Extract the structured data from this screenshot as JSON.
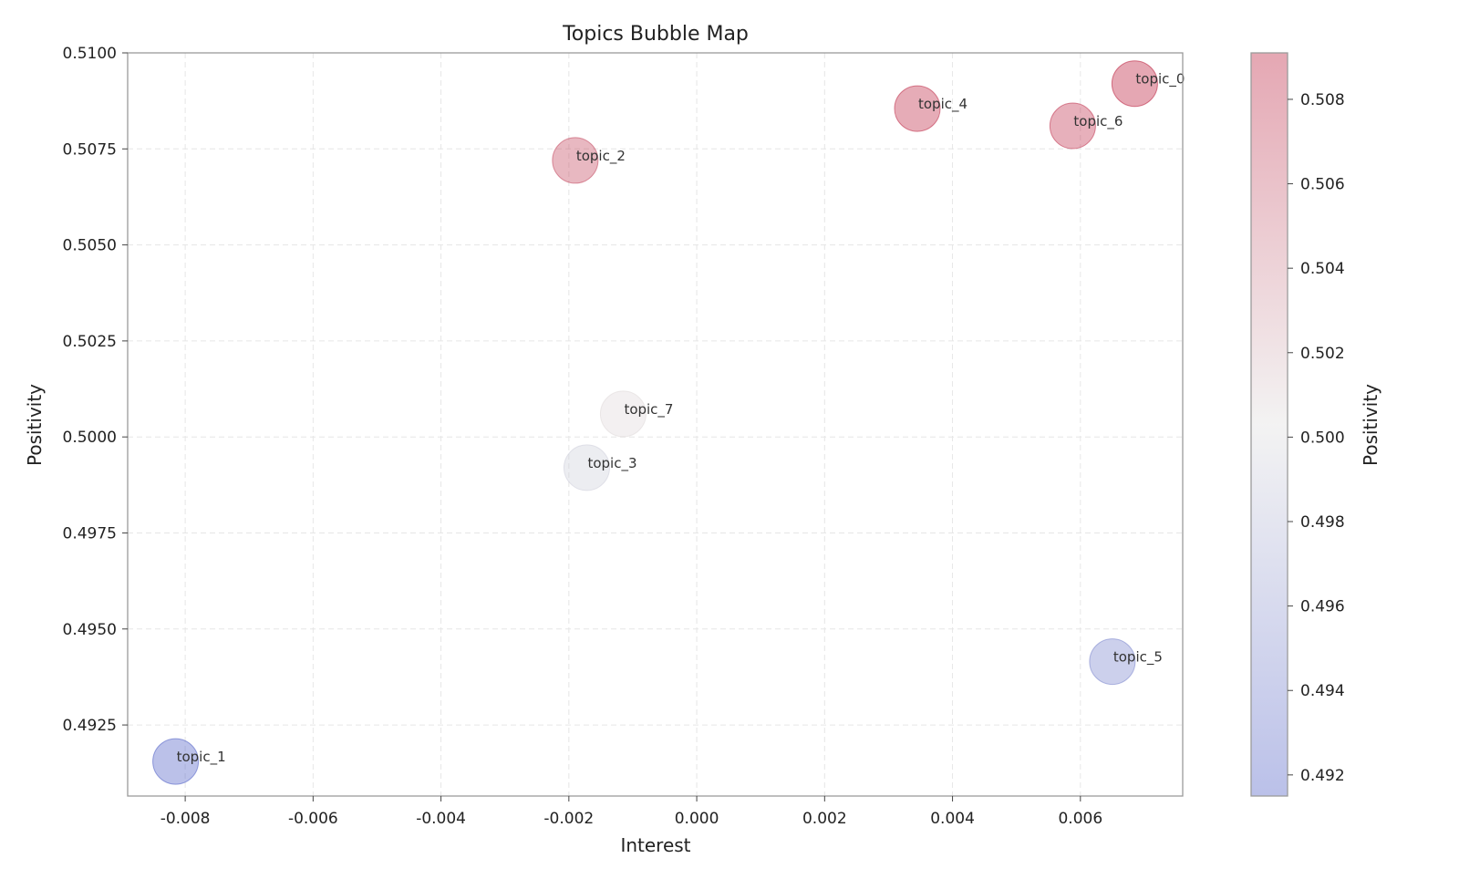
{
  "chart_data": {
    "type": "scatter",
    "title": "Topics Bubble Map",
    "xlabel": "Interest",
    "ylabel": "Positivity",
    "colorbar_label": "Positivity",
    "xlim": [
      -0.0089,
      0.0076
    ],
    "ylim": [
      0.49065,
      0.51
    ],
    "x_ticks": [
      -0.008,
      -0.006,
      -0.004,
      -0.002,
      0.0,
      0.002,
      0.004,
      0.006
    ],
    "x_tick_labels": [
      "-0.008",
      "-0.006",
      "-0.004",
      "-0.002",
      "0.000",
      "0.002",
      "0.004",
      "0.006"
    ],
    "y_ticks": [
      0.4925,
      0.495,
      0.4975,
      0.5,
      0.5025,
      0.505,
      0.5075,
      0.51
    ],
    "y_tick_labels": [
      "0.4925",
      "0.4950",
      "0.4975",
      "0.5000",
      "0.5025",
      "0.5050",
      "0.5075",
      "0.5100"
    ],
    "colorbar_range": [
      0.4915,
      0.5091
    ],
    "colorbar_ticks": [
      0.492,
      0.494,
      0.496,
      0.498,
      0.5,
      0.502,
      0.504,
      0.506,
      0.508
    ],
    "colorbar_tick_labels": [
      "0.492",
      "0.494",
      "0.496",
      "0.498",
      "0.500",
      "0.502",
      "0.504",
      "0.506",
      "0.508"
    ],
    "colormap": "coolwarm",
    "colormap_stops": [
      "#3b4cc0",
      "#dddcdc",
      "#b40426"
    ],
    "bubble_alpha": 0.35,
    "grid": true,
    "points": [
      {
        "label": "topic_0",
        "x": 0.00685,
        "y": 0.5092
      },
      {
        "label": "topic_1",
        "x": -0.00815,
        "y": 0.49155
      },
      {
        "label": "topic_2",
        "x": -0.0019,
        "y": 0.5072
      },
      {
        "label": "topic_3",
        "x": -0.00172,
        "y": 0.4992
      },
      {
        "label": "topic_4",
        "x": 0.00345,
        "y": 0.50855
      },
      {
        "label": "topic_5",
        "x": 0.0065,
        "y": 0.49415
      },
      {
        "label": "topic_6",
        "x": 0.00588,
        "y": 0.5081
      },
      {
        "label": "topic_7",
        "x": -0.00115,
        "y": 0.5006
      }
    ]
  }
}
